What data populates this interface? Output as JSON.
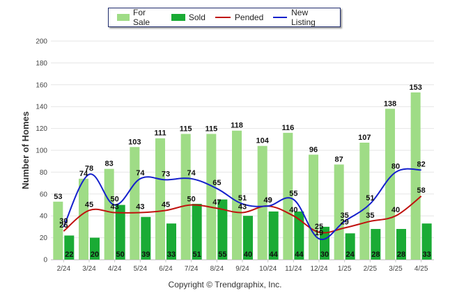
{
  "legend": {
    "for_sale": "For Sale",
    "sold": "Sold",
    "pended": "Pended",
    "new_listing": "New Listing"
  },
  "footer": "Copyright © Trendgraphix, Inc.",
  "colors": {
    "for_sale": "#9fdc86",
    "sold": "#1aab35",
    "pended": "#c0120e",
    "new_listing": "#1420cc",
    "grid": "#e6e6e6"
  },
  "chart_data": {
    "type": "bar",
    "title": "",
    "xlabel": "",
    "ylabel": "Number of Homes",
    "ylim": [
      0,
      200
    ],
    "yticks": [
      0,
      20,
      40,
      60,
      80,
      100,
      120,
      140,
      160,
      180,
      200
    ],
    "legend_position": "top-center",
    "grid": true,
    "categories": [
      "2/24",
      "3/24",
      "4/24",
      "5/24",
      "6/24",
      "7/24",
      "8/24",
      "9/24",
      "10/24",
      "11/24",
      "12/24",
      "1/25",
      "2/25",
      "3/25",
      "4/25"
    ],
    "series": [
      {
        "name": "For Sale",
        "type": "bar",
        "values": [
          53,
          74,
          83,
          103,
          111,
          115,
          115,
          118,
          104,
          116,
          96,
          87,
          107,
          138,
          153
        ]
      },
      {
        "name": "Sold",
        "type": "bar",
        "values": [
          22,
          20,
          50,
          39,
          33,
          51,
          55,
          40,
          44,
          44,
          30,
          24,
          28,
          28,
          33
        ]
      },
      {
        "name": "Pended",
        "type": "line",
        "values": [
          26,
          45,
          43,
          43,
          45,
          50,
          47,
          43,
          49,
          40,
          25,
          29,
          35,
          40,
          58
        ]
      },
      {
        "name": "New Listing",
        "type": "line",
        "values": [
          30,
          78,
          50,
          74,
          73,
          74,
          65,
          51,
          49,
          55,
          19,
          35,
          51,
          80,
          82
        ]
      }
    ]
  }
}
